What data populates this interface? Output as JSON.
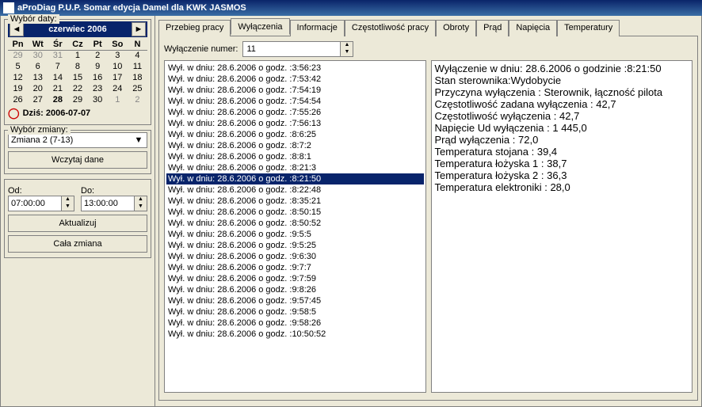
{
  "title": "aProDiag P.U.P. Somar      edycja Damel dla KWK JASMOS",
  "sidebar": {
    "date_group": "Wybór daty:",
    "cal_month": "czerwiec 2006",
    "weekdays": [
      "Pn",
      "Wt",
      "Śr",
      "Cz",
      "Pt",
      "So",
      "N"
    ],
    "weeks": [
      [
        {
          "d": "29",
          "o": 1
        },
        {
          "d": "30",
          "o": 1
        },
        {
          "d": "31",
          "o": 1
        },
        {
          "d": "1"
        },
        {
          "d": "2"
        },
        {
          "d": "3"
        },
        {
          "d": "4"
        }
      ],
      [
        {
          "d": "5"
        },
        {
          "d": "6"
        },
        {
          "d": "7"
        },
        {
          "d": "8"
        },
        {
          "d": "9"
        },
        {
          "d": "10"
        },
        {
          "d": "11"
        }
      ],
      [
        {
          "d": "12"
        },
        {
          "d": "13"
        },
        {
          "d": "14"
        },
        {
          "d": "15"
        },
        {
          "d": "16"
        },
        {
          "d": "17"
        },
        {
          "d": "18"
        }
      ],
      [
        {
          "d": "19"
        },
        {
          "d": "20"
        },
        {
          "d": "21"
        },
        {
          "d": "22"
        },
        {
          "d": "23"
        },
        {
          "d": "24"
        },
        {
          "d": "25"
        }
      ],
      [
        {
          "d": "26"
        },
        {
          "d": "27"
        },
        {
          "d": "28",
          "sel": 1
        },
        {
          "d": "29"
        },
        {
          "d": "30"
        },
        {
          "d": "1",
          "o": 1
        },
        {
          "d": "2",
          "o": 1
        }
      ]
    ],
    "today_label": "Dziś:",
    "today_date": "2006-07-07",
    "shift_group": "Wybór zmiany:",
    "shift_value": "Zmiana 2 (7-13)",
    "load_btn": "Wczytaj dane",
    "od": "Od:",
    "do": "Do:",
    "time_od": "07:00:00",
    "time_do": "13:00:00",
    "update_btn": "Aktualizuj",
    "whole_btn": "Cała zmiana"
  },
  "tabs": [
    "Przebieg pracy",
    "Wyłączenia",
    "Informacje",
    "Częstotliwość pracy",
    "Obroty",
    "Prąd",
    "Napięcia",
    "Temperatury"
  ],
  "active_tab": 1,
  "numer_label": "Wyłączenie numer:",
  "numer_value": "11",
  "list": [
    "Wył. w dniu: 28.6.2006 o godz. :3:56:23",
    "Wył. w dniu: 28.6.2006 o godz. :7:53:42",
    "Wył. w dniu: 28.6.2006 o godz. :7:54:19",
    "Wył. w dniu: 28.6.2006 o godz. :7:54:54",
    "Wył. w dniu: 28.6.2006 o godz. :7:55:26",
    "Wył. w dniu: 28.6.2006 o godz. :7:56:13",
    "Wył. w dniu: 28.6.2006 o godz. :8:6:25",
    "Wył. w dniu: 28.6.2006 o godz. :8:7:2",
    "Wył. w dniu: 28.6.2006 o godz. :8:8:1",
    "Wył. w dniu: 28.6.2006 o godz. :8:21:3",
    "Wył. w dniu: 28.6.2006 o godz. :8:21:50",
    "Wył. w dniu: 28.6.2006 o godz. :8:22:48",
    "Wył. w dniu: 28.6.2006 o godz. :8:35:21",
    "Wył. w dniu: 28.6.2006 o godz. :8:50:15",
    "Wył. w dniu: 28.6.2006 o godz. :8:50:52",
    "Wył. w dniu: 28.6.2006 o godz. :9:5:5",
    "Wył. w dniu: 28.6.2006 o godz. :9:5:25",
    "Wył. w dniu: 28.6.2006 o godz. :9:6:30",
    "Wył. w dniu: 28.6.2006 o godz. :9:7:7",
    "Wył. w dniu: 28.6.2006 o godz. :9:7:59",
    "Wył. w dniu: 28.6.2006 o godz. :9:8:26",
    "Wył. w dniu: 28.6.2006 o godz. :9:57:45",
    "Wył. w dniu: 28.6.2006 o godz. :9:58:5",
    "Wył. w dniu: 28.6.2006 o godz. :9:58:26",
    "Wył. w dniu: 28.6.2006 o godz. :10:50:52"
  ],
  "selected_index": 10,
  "details": [
    "Wyłączenie w dniu: 28.6.2006 o godzinie :8:21:50",
    "Stan sterownika:Wydobycie",
    "Przyczyna wyłączenia : Sterownik, łączność pilota",
    "Częstotliwość zadana wyłączenia : 42,7",
    "Częstotliwość wyłączenia : 42,7",
    "Napięcie Ud wyłączenia : 1 445,0",
    "Prąd wyłączenia : 72,0",
    "Temperatura stojana : 39,4",
    "Temperatura łożyska 1 : 38,7",
    "Temperatura łożyska 2 : 36,3",
    "Temperatura elektroniki : 28,0"
  ]
}
